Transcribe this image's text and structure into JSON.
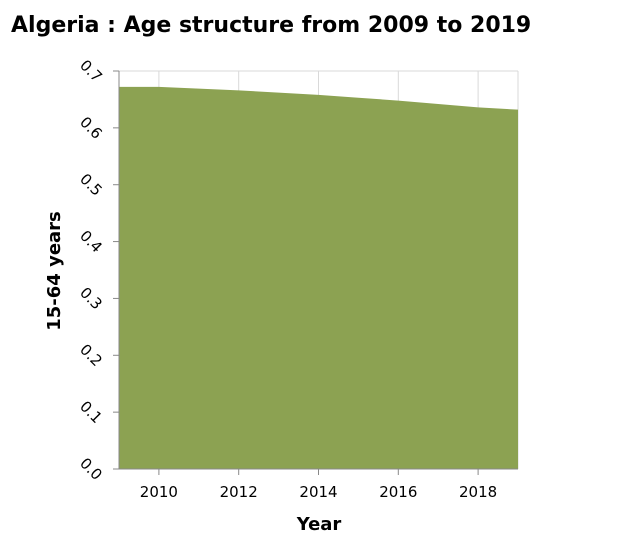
{
  "chart_data": {
    "type": "area",
    "title": "Algeria : Age structure from 2009 to 2019",
    "xlabel": "Year",
    "ylabel": "15-64 years",
    "x": [
      2009,
      2010,
      2011,
      2012,
      2013,
      2014,
      2015,
      2016,
      2017,
      2018,
      2019
    ],
    "series": [
      {
        "values": [
          0.672,
          0.672,
          0.669,
          0.666,
          0.662,
          0.658,
          0.653,
          0.648,
          0.642,
          0.636,
          0.632
        ]
      }
    ],
    "xlim": [
      2009,
      2019
    ],
    "ylim": [
      0,
      0.7
    ],
    "x_ticks": [
      2010,
      2012,
      2014,
      2016,
      2018
    ],
    "x_tick_labels": [
      "2010",
      "2012",
      "2014",
      "2016",
      "2018"
    ],
    "y_ticks": [
      0,
      0.1,
      0.2,
      0.3,
      0.4,
      0.5,
      0.6,
      0.7
    ],
    "y_tick_labels": [
      "0.0",
      "0.1",
      "0.2",
      "0.3",
      "0.4",
      "0.5",
      "0.6",
      "0.7"
    ],
    "grid": true,
    "legend": "none",
    "colors": {
      "area": "#8ca252",
      "grid": "#d9d9d9",
      "axis": "#888888"
    }
  }
}
